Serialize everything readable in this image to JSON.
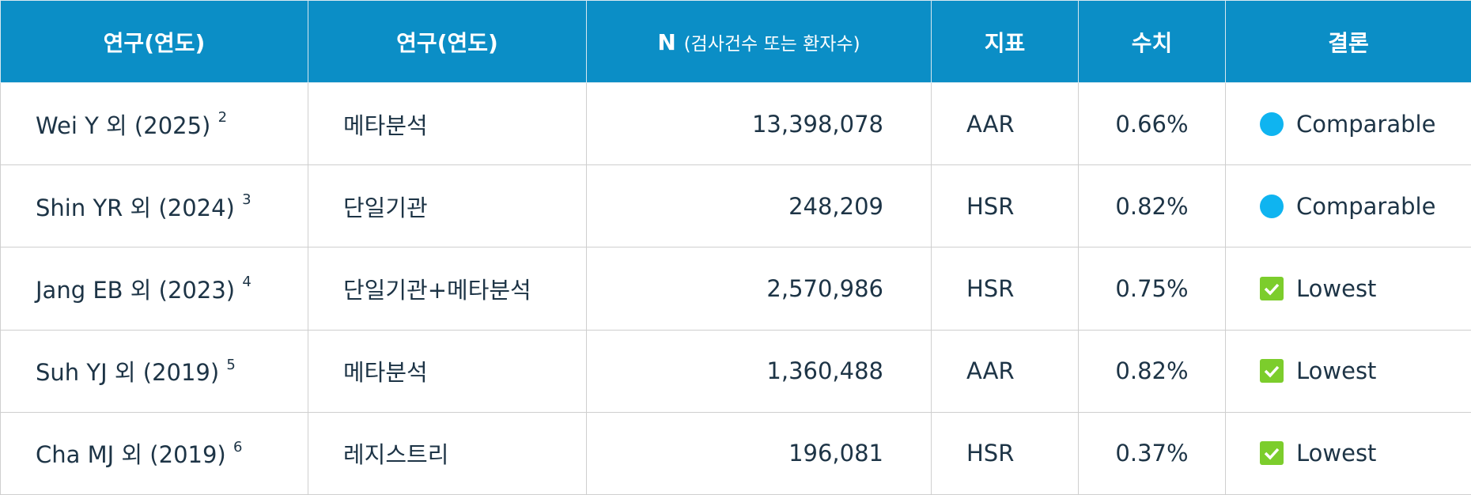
{
  "table": {
    "header": [
      "연구(연도)",
      "연구(연도)",
      {
        "main": "N",
        "sub": "(검사건수 또는 환자수)"
      },
      "지표",
      "수치",
      "결론"
    ],
    "rows": [
      [
        {
          "study": "Wei Y 외 (2025)",
          "ref": "2"
        },
        "메타분석",
        "13,398,078",
        "AAR",
        "0.66%",
        "Comparable"
      ],
      [
        {
          "study": "Shin YR 외 (2024)",
          "ref": "3"
        },
        "단일기관",
        "248,209",
        "HSR",
        "0.82%",
        "Comparable"
      ],
      [
        {
          "study": "Jang EB 외 (2023)",
          "ref": "4"
        },
        "단일기관+메타분석",
        "2,570,986",
        "HSR",
        "0.75%",
        "Lowest"
      ],
      [
        {
          "study": "Suh YJ 외 (2019)",
          "ref": "5"
        },
        "메타분석",
        "1,360,488",
        "AAR",
        "0.82%",
        "Lowest"
      ],
      [
        {
          "study": "Cha MJ 외 (2019)",
          "ref": "6"
        },
        "레지스트리",
        "196,081",
        "HSR",
        "0.37%",
        "Lowest"
      ]
    ]
  }
}
